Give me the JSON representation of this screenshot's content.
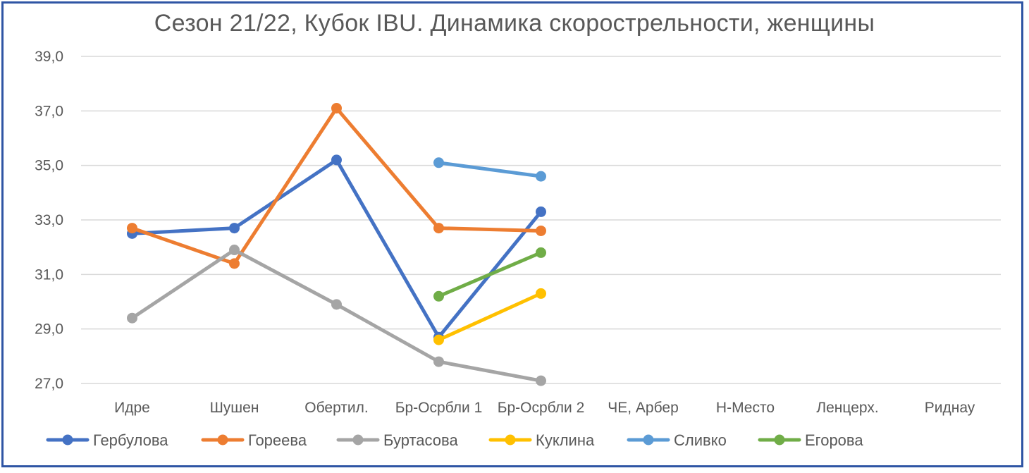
{
  "chart_data": {
    "type": "line",
    "title": "Сезон 21/22, Кубок IBU. Динамика скорострельности,  женщины",
    "xlabel": "",
    "ylabel": "",
    "categories": [
      "Идре",
      "Шушен",
      "Обертил.",
      "Бр-Осрбли 1",
      "Бр-Осрбли 2",
      "ЧЕ, Арбер",
      "Н-Место",
      "Ленцерх.",
      "Риднау"
    ],
    "y_ticks": [
      "27,0",
      "29,0",
      "31,0",
      "33,0",
      "35,0",
      "37,0",
      "39,0"
    ],
    "ylim": [
      27,
      39
    ],
    "grid": true,
    "legend_position": "bottom",
    "series": [
      {
        "name": "Гербулова",
        "color": "#4472c4",
        "values": [
          32.5,
          32.7,
          35.2,
          28.7,
          33.3,
          null,
          null,
          null,
          null
        ]
      },
      {
        "name": "Гореева",
        "color": "#ed7d31",
        "values": [
          32.7,
          31.4,
          37.1,
          32.7,
          32.6,
          null,
          null,
          null,
          null
        ]
      },
      {
        "name": "Буртасова",
        "color": "#a5a5a5",
        "values": [
          29.4,
          31.9,
          29.9,
          27.8,
          27.1,
          null,
          null,
          null,
          null
        ]
      },
      {
        "name": "Куклина",
        "color": "#ffc000",
        "values": [
          null,
          null,
          null,
          28.6,
          30.3,
          null,
          null,
          null,
          null
        ]
      },
      {
        "name": "Сливко",
        "color": "#5b9bd5",
        "values": [
          null,
          null,
          null,
          35.1,
          34.6,
          null,
          null,
          null,
          null
        ]
      },
      {
        "name": "Егорова",
        "color": "#70ad47",
        "values": [
          null,
          null,
          null,
          30.2,
          31.8,
          null,
          null,
          null,
          null
        ]
      }
    ]
  }
}
